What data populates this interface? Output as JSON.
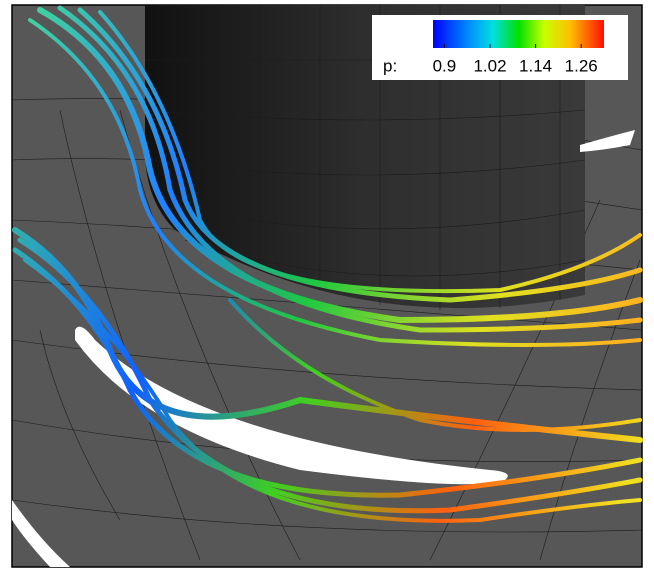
{
  "legend": {
    "label": "p:",
    "ticks": [
      0.9,
      1.02,
      1.14,
      1.26
    ],
    "range": [
      0.87,
      1.32
    ]
  }
}
